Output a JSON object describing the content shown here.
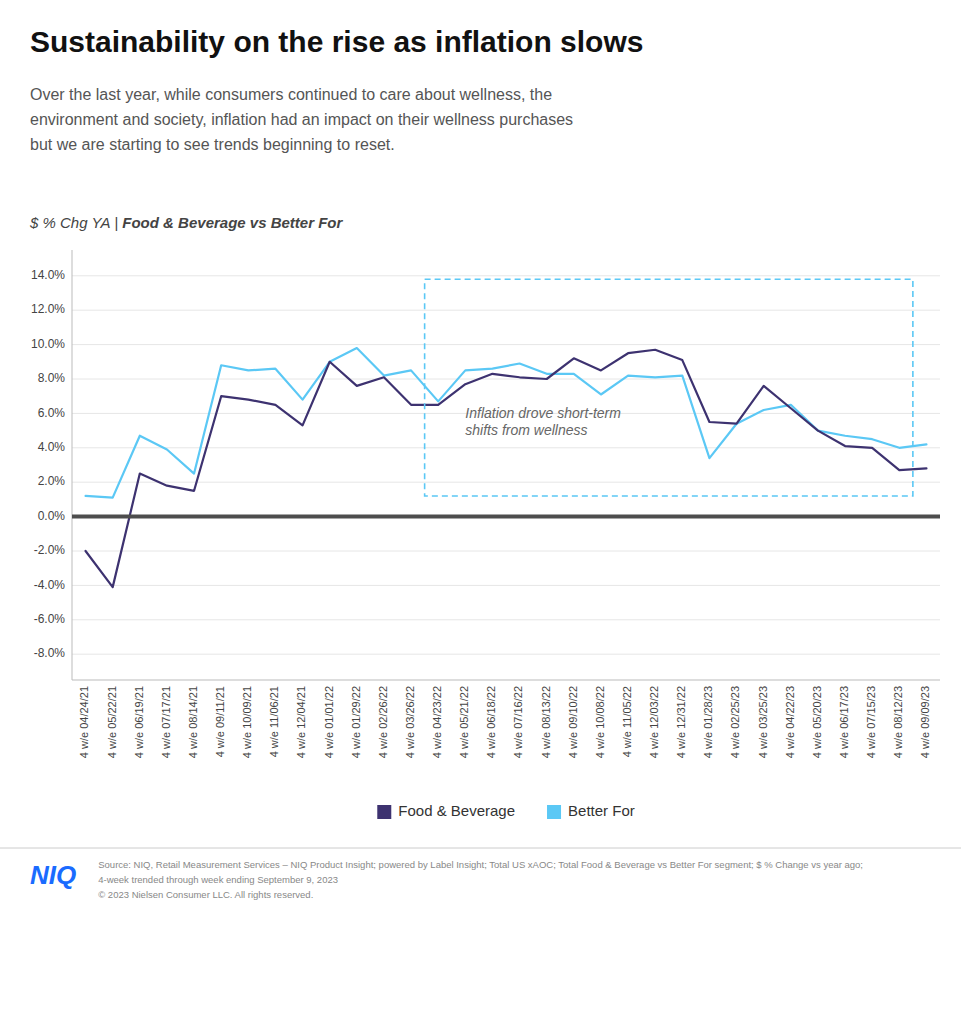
{
  "chart_data": {
    "type": "line",
    "title": "Sustainability on the rise as inflation slows",
    "subtitle": "Over the last year, while consumers continued to care about wellness, the\nenvironment and society, inflation had an impact on their wellness purchases\nbut we are starting to see trends beginning to reset.",
    "chart_label": {
      "normal": "$ % Chg YA | ",
      "bold": "Food & Beverage vs Better For"
    },
    "categories": [
      "4 w/e 04/24/21",
      "4 w/e 05/22/21",
      "4 w/e 06/19/21",
      "4 w/e 07/17/21",
      "4 w/e 08/14/21",
      "4 w/e 09/11/21",
      "4 w/e 10/09/21",
      "4 w/e 11/06/21",
      "4 w/e 12/04/21",
      "4 w/e 01/01/22",
      "4 w/e 01/29/22",
      "4 w/e 02/26/22",
      "4 w/e 03/26/22",
      "4 w/e 04/23/22",
      "4 w/e 05/21/22",
      "4 w/e 06/18/22",
      "4 w/e 07/16/22",
      "4 w/e 08/13/22",
      "4 w/e 09/10/22",
      "4 w/e 10/08/22",
      "4 w/e 11/05/22",
      "4 w/e 12/03/22",
      "4 w/e 12/31/22",
      "4 w/e 01/28/23",
      "4 w/e 02/25/23",
      "4 w/e 03/25/23",
      "4 w/e 04/22/23",
      "4 w/e 05/20/23",
      "4 w/e 06/17/23",
      "4 w/e 07/15/23",
      "4 w/e 08/12/23",
      "4 w/e 09/09/23"
    ],
    "series": [
      {
        "name": "Food & Beverage",
        "color": "#3d3270",
        "values": [
          -2.0,
          -4.1,
          2.5,
          1.8,
          1.5,
          7.0,
          6.8,
          6.5,
          5.3,
          9.0,
          7.6,
          8.1,
          6.5,
          6.5,
          7.7,
          8.3,
          8.1,
          8.0,
          9.2,
          8.5,
          9.5,
          9.7,
          9.1,
          5.5,
          5.4,
          7.6,
          6.3,
          5.0,
          4.1,
          4.0,
          2.7,
          2.8
        ]
      },
      {
        "name": "Better For",
        "color": "#5bc8f5",
        "values": [
          1.2,
          1.1,
          4.7,
          3.9,
          2.5,
          8.8,
          8.5,
          8.6,
          6.8,
          9.0,
          9.8,
          8.2,
          8.5,
          6.7,
          8.5,
          8.6,
          8.9,
          8.3,
          8.3,
          7.1,
          8.2,
          8.1,
          8.2,
          3.4,
          5.4,
          6.2,
          6.5,
          5.0,
          4.7,
          4.5,
          4.0,
          4.2
        ]
      }
    ],
    "ylim": [
      -9.5,
      15.5
    ],
    "yticks": [
      {
        "value": -8.0,
        "label": "-8.0%"
      },
      {
        "value": -6.0,
        "label": "-6.0%"
      },
      {
        "value": -4.0,
        "label": "-4.0%"
      },
      {
        "value": -2.0,
        "label": "-2.0%"
      },
      {
        "value": 0.0,
        "label": "0.0%"
      },
      {
        "value": 2.0,
        "label": "2.0%"
      },
      {
        "value": 4.0,
        "label": "4.0%"
      },
      {
        "value": 6.0,
        "label": "6.0%"
      },
      {
        "value": 8.0,
        "label": "8.0%"
      },
      {
        "value": 10.0,
        "label": "10.0%"
      },
      {
        "value": 12.0,
        "label": "12.0%"
      },
      {
        "value": 14.0,
        "label": "14.0%"
      }
    ],
    "grid": true,
    "legend": "bottom",
    "reference_line": {
      "y": 0.0,
      "color": "#4d4d4d"
    },
    "highlight": {
      "x_start": "4 w/e 04/23/22",
      "x_end": "4 w/e 08/12/23",
      "y_bottom": 1.2,
      "y_top": 13.8,
      "color": "#5bc8f5"
    },
    "annotation": {
      "text": "Inflation drove short-term\nshifts from wellness",
      "x": "4 w/e 05/21/22",
      "y": 5.5
    },
    "footer": {
      "logo": "NIQ",
      "logo_color": "#1a6bff",
      "source": [
        "Source: NIQ, Retail Measurement Services – NIQ Product Insight; powered by Label Insight; Total US xAOC; Total Food & Beverage vs Better For segment; $ % Change vs year ago;",
        "4-week trended through week ending September 9, 2023",
        "© 2023 Nielsen Consumer LLC. All rights reserved."
      ]
    }
  }
}
